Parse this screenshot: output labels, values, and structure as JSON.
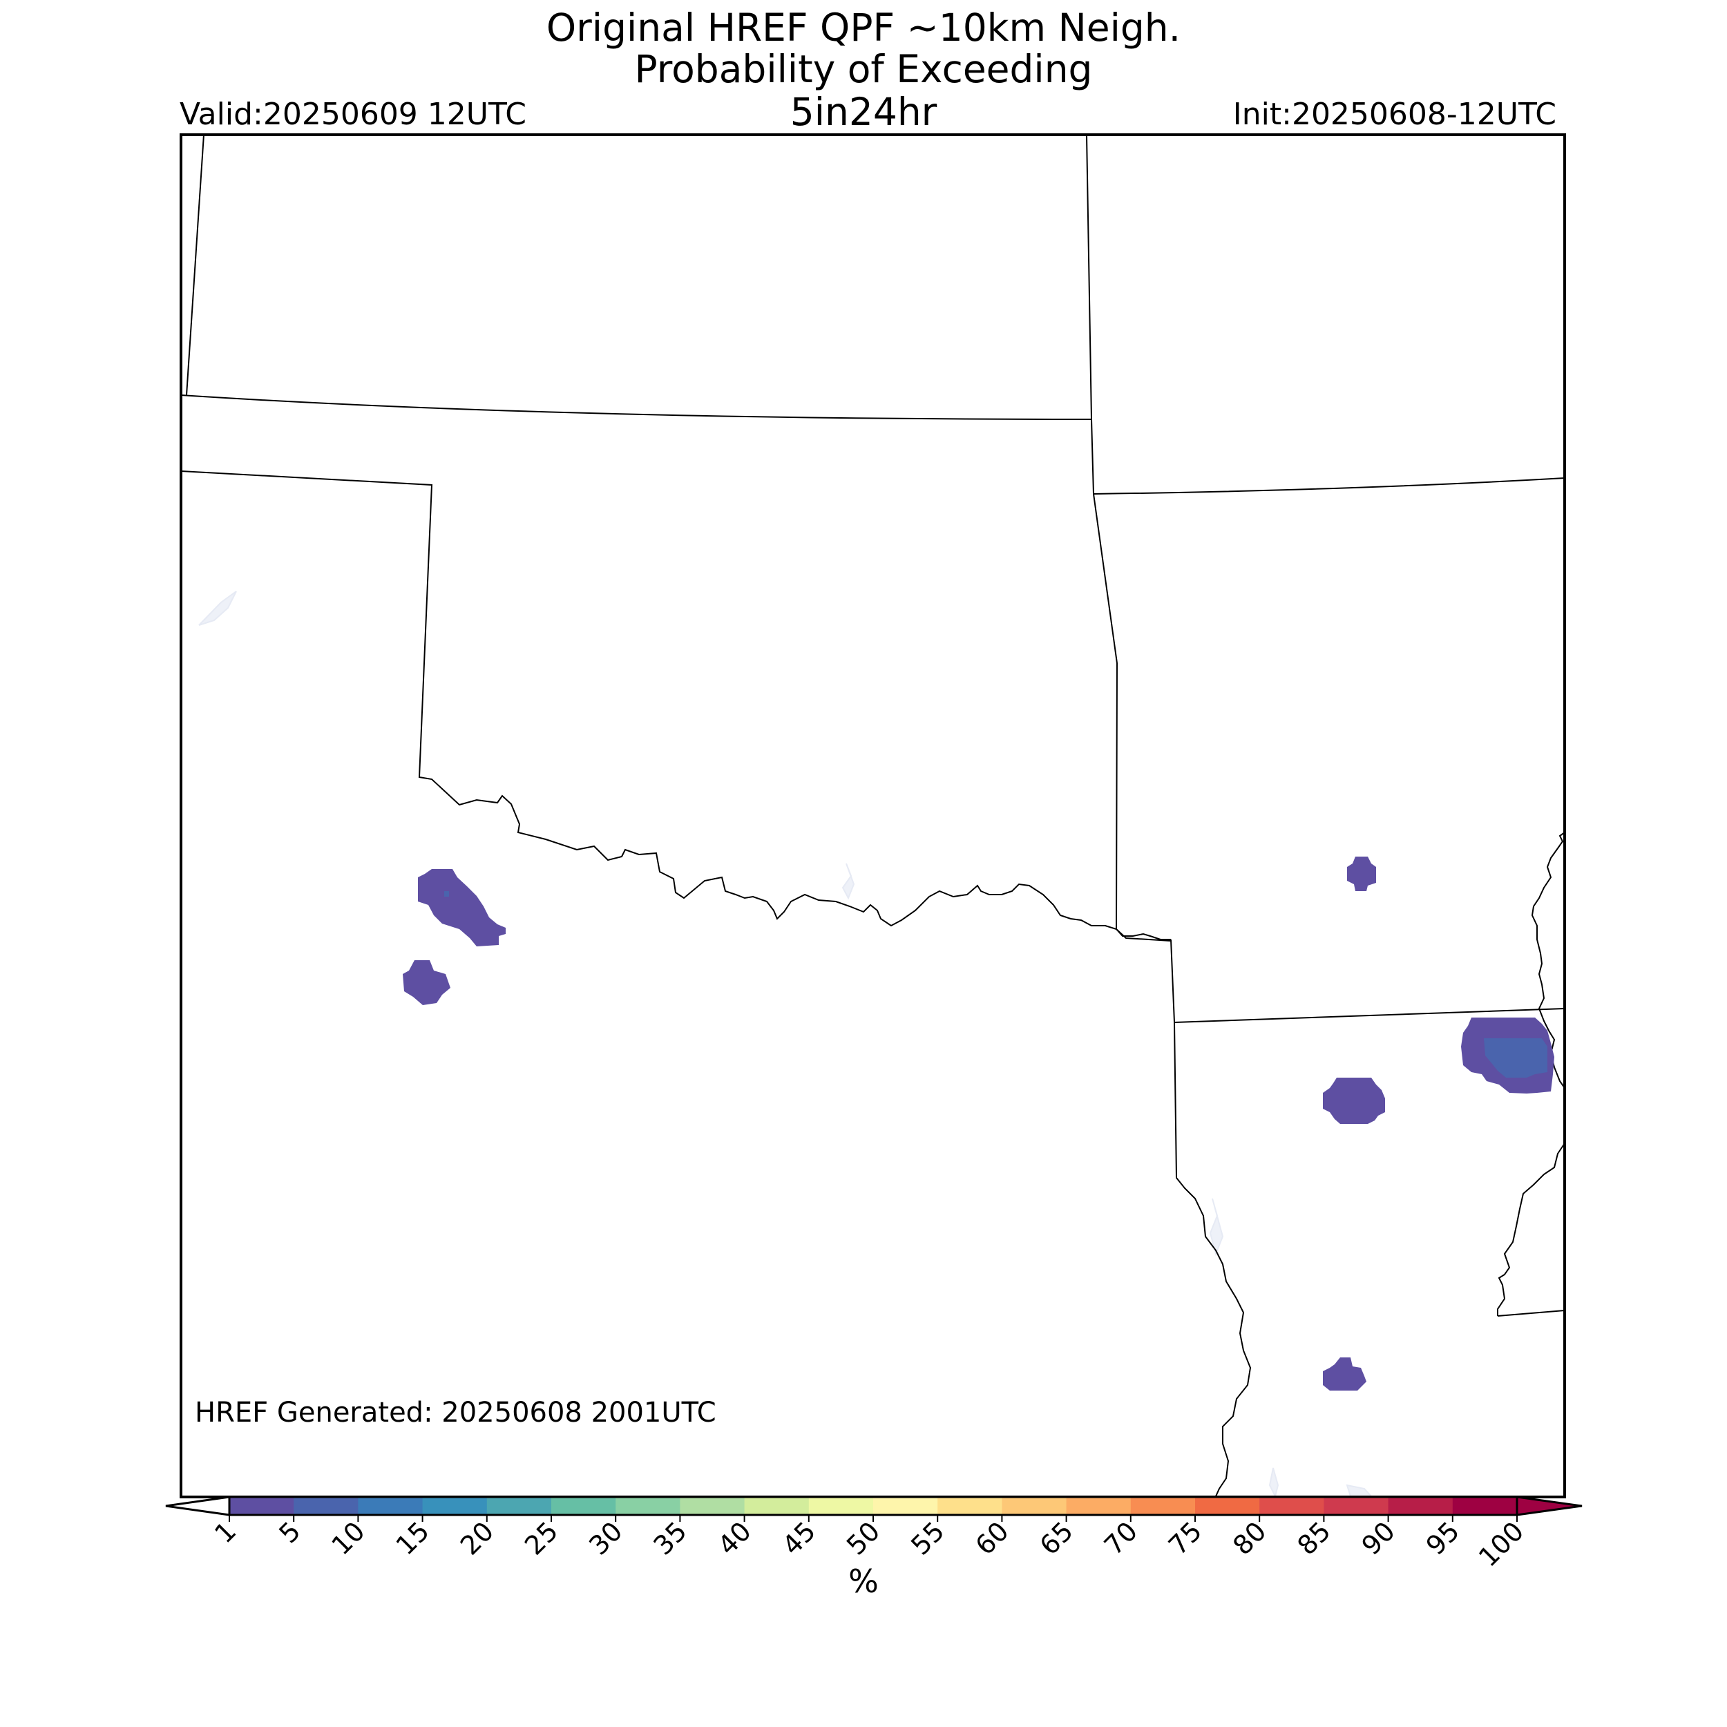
{
  "title": {
    "line1": "Original HREF QPF ~10km Neigh.",
    "line2": "Probability of Exceeding",
    "line3": "5in24hr"
  },
  "valid": "Valid:20250609 12UTC",
  "init": "Init:20250608-12UTC",
  "generated": "HREF Generated: 20250608 2001UTC",
  "colorbar": {
    "unit": "%",
    "ticks": [
      "1",
      "5",
      "10",
      "15",
      "20",
      "25",
      "30",
      "35",
      "40",
      "45",
      "50",
      "55",
      "60",
      "65",
      "70",
      "75",
      "80",
      "85",
      "90",
      "95",
      "100"
    ],
    "colors": [
      "#5e4fa2",
      "#4a64ad",
      "#3b7bb8",
      "#3891bb",
      "#4ca6b1",
      "#66bfa5",
      "#89d0a4",
      "#b0dea3",
      "#d3ed9c",
      "#eef8a4",
      "#fef5ab",
      "#fee08b",
      "#fdc877",
      "#fcac64",
      "#f88d52",
      "#f06a43",
      "#df4e4b",
      "#cf3a4e",
      "#b71e48",
      "#9e0142"
    ]
  },
  "probability_areas": [
    {
      "level": "1-5%",
      "color": "#5e4fa2"
    },
    {
      "level": "5-10%",
      "color": "#4a64ad"
    }
  ]
}
